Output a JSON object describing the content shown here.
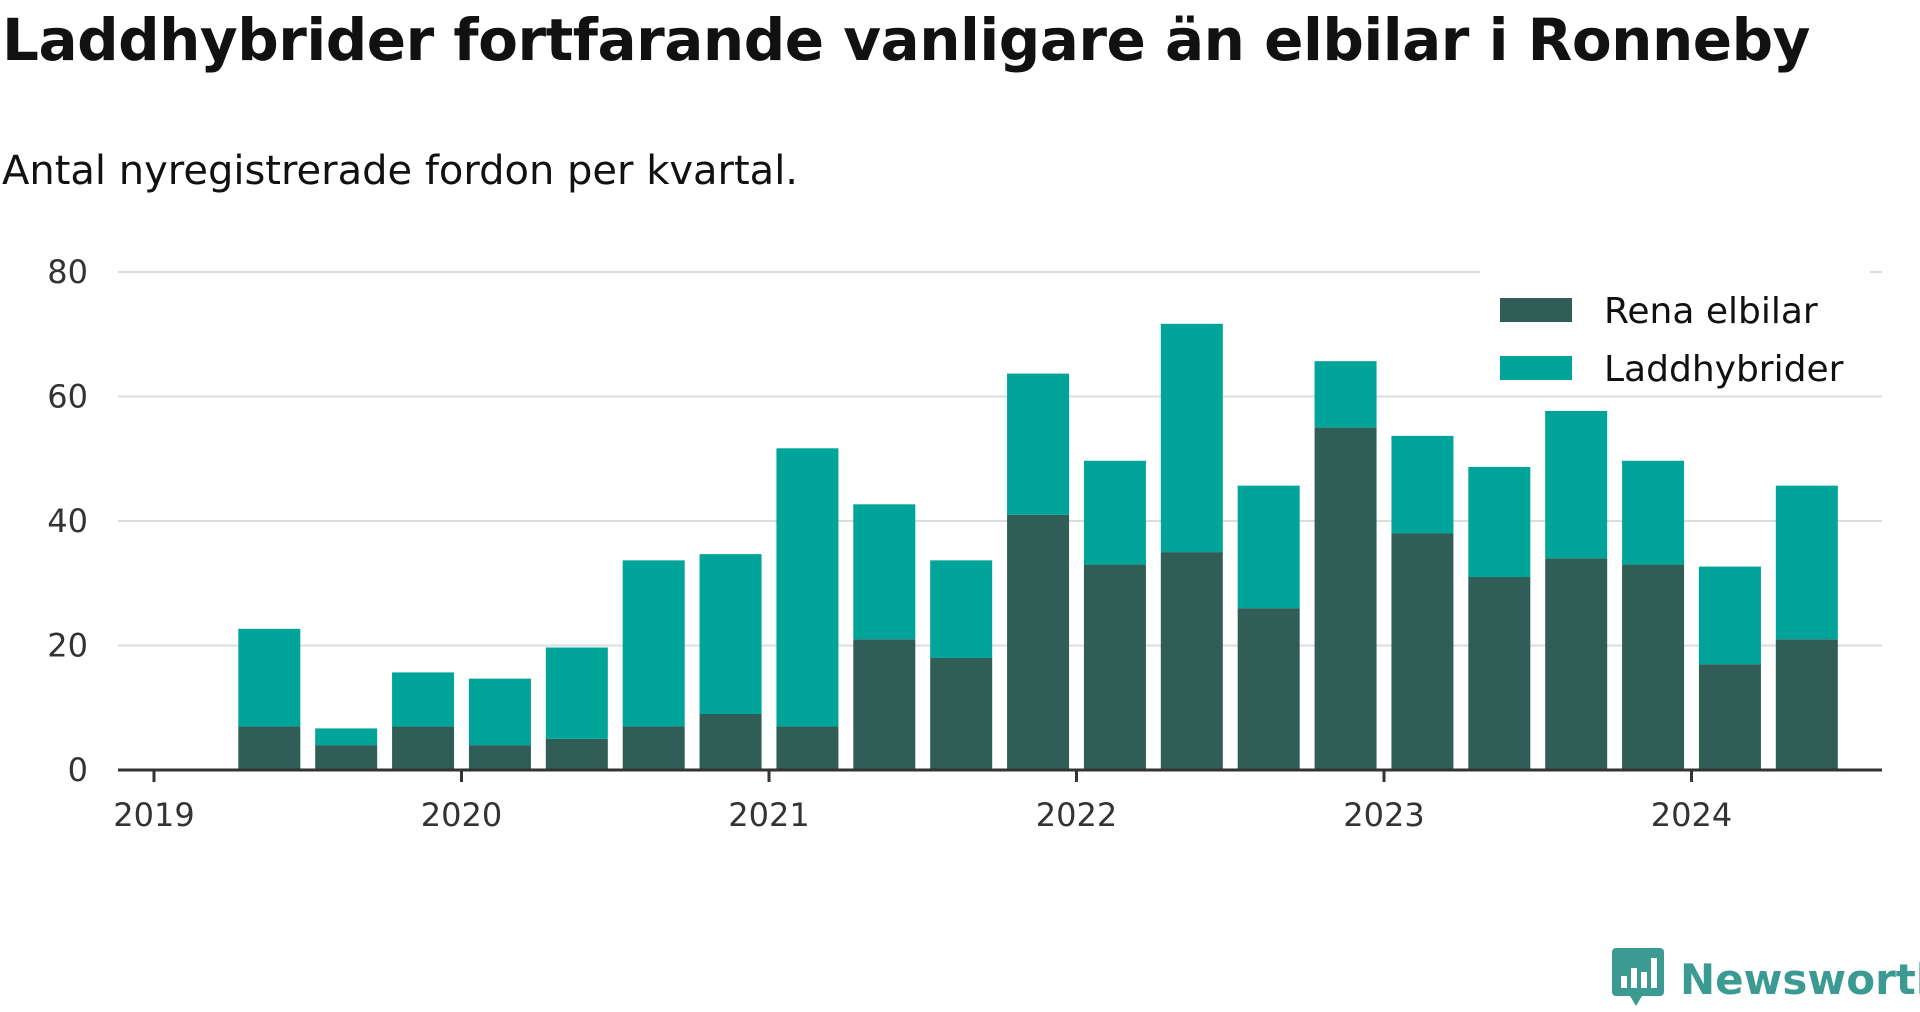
{
  "chart_data": {
    "type": "bar",
    "stacked": true,
    "title": "Laddhybrider fortfarande vanligare än elbilar i Ronneby",
    "subtitle": "Antal nyregistrerade fordon per kvartal.",
    "categories": [
      "2019 Q2",
      "2019 Q3",
      "2019 Q4",
      "2020 Q1",
      "2020 Q2",
      "2020 Q3",
      "2020 Q4",
      "2021 Q1",
      "2021 Q2",
      "2021 Q3",
      "2021 Q4",
      "2022 Q1",
      "2022 Q2",
      "2022 Q3",
      "2022 Q4",
      "2023 Q1",
      "2023 Q2",
      "2023 Q3",
      "2023 Q4",
      "2024 Q1",
      "2024 Q2"
    ],
    "series": [
      {
        "name": "Rena elbilar",
        "color": "#305e57",
        "values": [
          7,
          4,
          7,
          4,
          5,
          7,
          9,
          7,
          21,
          18,
          41,
          33,
          35,
          26,
          55,
          38,
          31,
          34,
          33,
          17,
          21
        ]
      },
      {
        "name": "Laddhybrider",
        "color": "#00a499",
        "values": [
          16,
          3,
          9,
          11,
          15,
          27,
          26,
          45,
          22,
          16,
          23,
          17,
          37,
          20,
          11,
          16,
          18,
          24,
          17,
          16,
          25
        ]
      }
    ],
    "x_ticks": [
      "2019",
      "2020",
      "2021",
      "2022",
      "2023",
      "2024"
    ],
    "y_ticks": [
      0,
      20,
      40,
      60,
      80
    ],
    "ylim": [
      0,
      80
    ],
    "legend_position": "top-right"
  },
  "brand": {
    "name": "Newsworthy",
    "color": "#3b9a92"
  }
}
